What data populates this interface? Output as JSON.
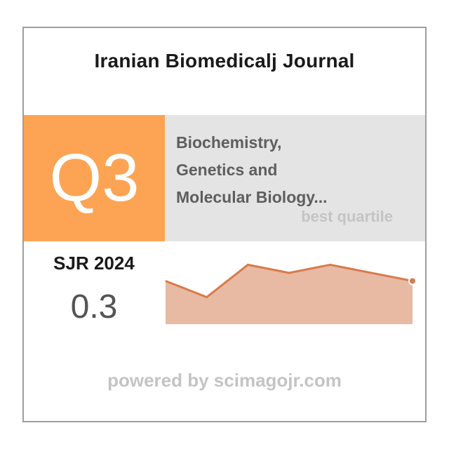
{
  "journal": {
    "title": "Iranian Biomedicalj Journal"
  },
  "quartile": {
    "value": "Q3",
    "best_label": "best quartile"
  },
  "category": {
    "name": "Biochemistry,\nGenetics and\nMolecular Biology..."
  },
  "sjr": {
    "label": "SJR 2024",
    "value": "0.3"
  },
  "footer": {
    "text": "powered by scimagojr.com"
  },
  "colors": {
    "quartile_bg": "#fca453",
    "category_bg": "#e4e4e4",
    "trend_line": "#d77b4b",
    "trend_fill": "#e8b9a3"
  },
  "chart_data": {
    "type": "area",
    "values": [
      0.33,
      0.3,
      0.36,
      0.345,
      0.36,
      0.345,
      0.33
    ],
    "ylim": [
      0.25,
      0.38
    ],
    "last_point_marker": true
  }
}
